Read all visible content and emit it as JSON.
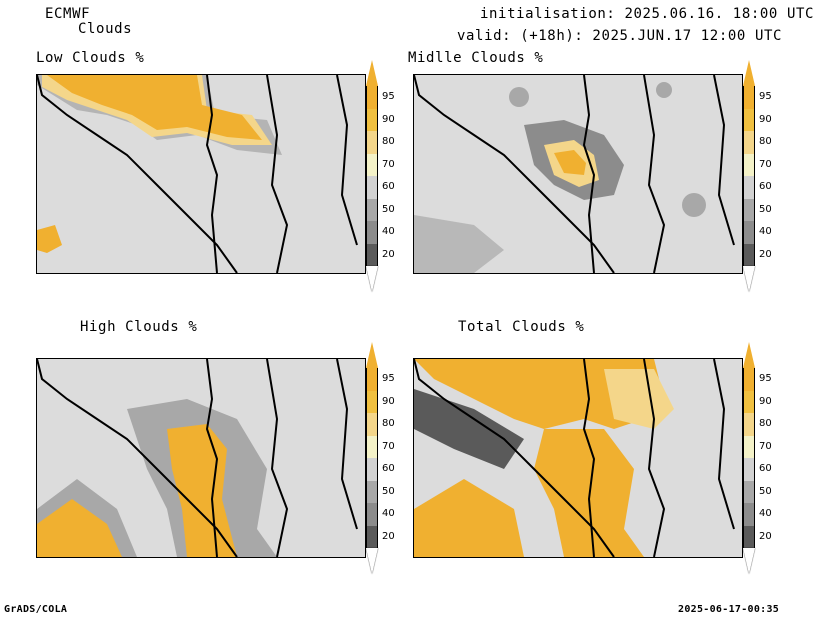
{
  "header": {
    "model": "ECMWF",
    "field": "Clouds",
    "init": "initialisation: 2025.06.16. 18:00 UTC",
    "valid": "valid: (+18h): 2025.JUN.17 12:00 UTC"
  },
  "panels": [
    {
      "title": "Low Clouds %"
    },
    {
      "title": "Midlle Clouds %"
    },
    {
      "title": "High Clouds %"
    },
    {
      "title": "Total Clouds %"
    }
  ],
  "legend": {
    "levels": [
      "95",
      "90",
      "80",
      "70",
      "60",
      "50",
      "40",
      "20"
    ],
    "colors": {
      "95plus": "#f0b030",
      "90": "#f0c040",
      "80": "#f4d68a",
      "70": "#f4f2c8",
      "60": "#d2d2d2",
      "50": "#a8a8a8",
      "40": "#8c8c8c",
      "20": "#5a5a5a",
      "below": "#ffffff"
    }
  },
  "footer": {
    "left": "GrADS/COLA",
    "right": "2025-06-17-00:35"
  }
}
